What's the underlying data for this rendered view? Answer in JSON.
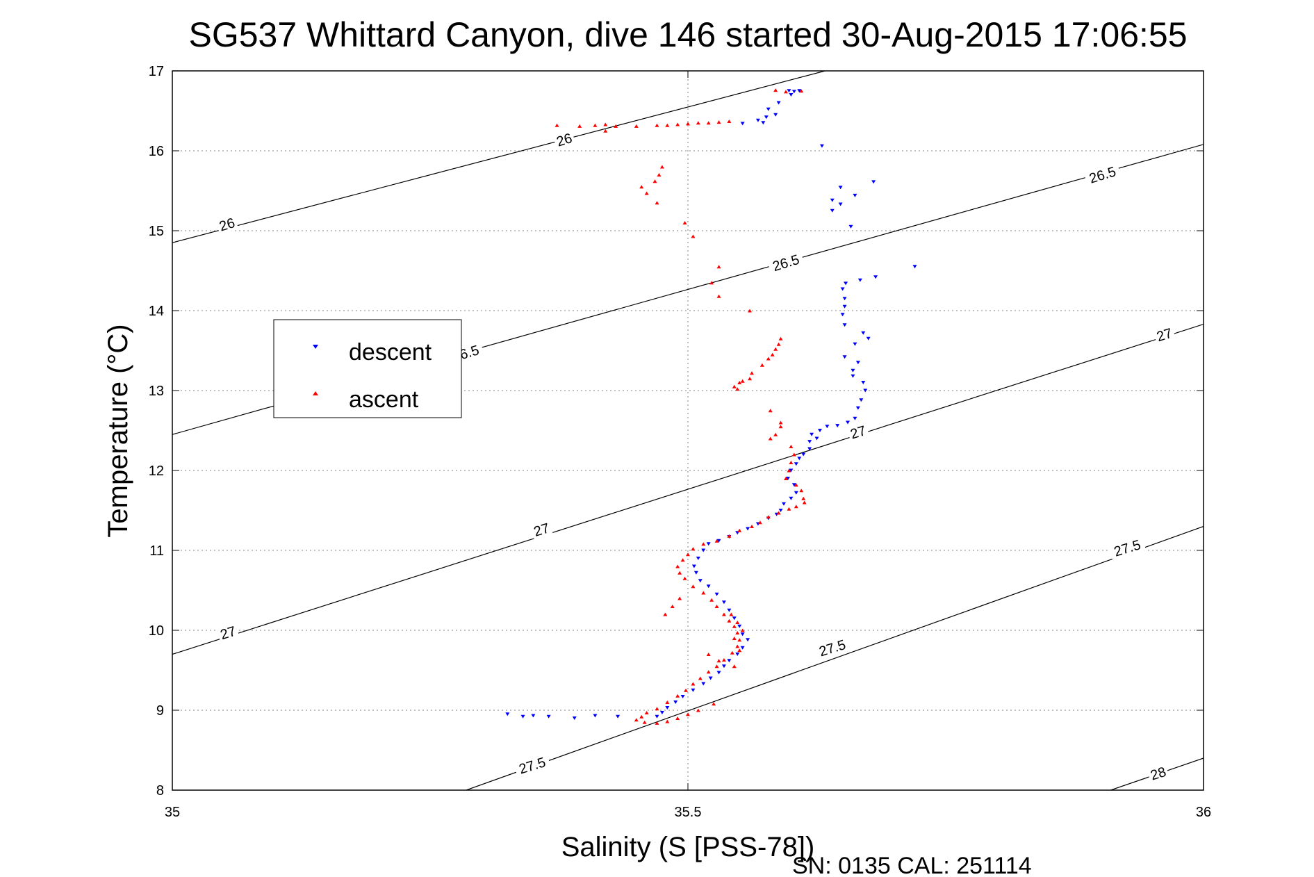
{
  "chart_data": {
    "type": "scatter",
    "title": "SG537 Whittard Canyon, dive 146 started 30-Aug-2015 17:06:55",
    "xlabel": "Salinity (S [PSS-78])",
    "ylabel": "Temperature (°C)",
    "xlim": [
      35,
      36
    ],
    "ylim": [
      8,
      17
    ],
    "xticks": [
      "35",
      "35.5",
      "36"
    ],
    "yticks": [
      "8",
      "9",
      "10",
      "11",
      "12",
      "13",
      "14",
      "15",
      "16",
      "17"
    ],
    "grid": true,
    "legend": {
      "location": "upper-left",
      "entries": [
        "descent",
        "ascent"
      ]
    },
    "footer": "SN: 0135  CAL: 251114",
    "isopycnals": [
      {
        "label": "26",
        "points": [
          [
            35.0,
            14.85
          ],
          [
            35.633,
            17.0
          ]
        ]
      },
      {
        "label": "26.5",
        "points": [
          [
            35.0,
            12.45
          ],
          [
            36.0,
            16.08
          ]
        ]
      },
      {
        "label": "27",
        "points": [
          [
            35.0,
            9.7
          ],
          [
            36.0,
            13.83
          ]
        ]
      },
      {
        "label": "27.5",
        "points": [
          [
            35.285,
            8.0
          ],
          [
            36.0,
            11.3
          ]
        ]
      },
      {
        "label": "28",
        "points": [
          [
            35.91,
            8.0
          ],
          [
            36.0,
            8.4
          ]
        ]
      }
    ],
    "contour_labels": [
      {
        "text": "26",
        "s": 35.053,
        "t": 15.08,
        "angle": -17
      },
      {
        "text": "26",
        "s": 35.38,
        "t": 16.14,
        "angle": -17
      },
      {
        "text": "26.5",
        "s": 35.595,
        "t": 14.6,
        "angle": -17
      },
      {
        "text": "26.5",
        "s": 35.902,
        "t": 15.7,
        "angle": -17
      },
      {
        "text": "6.5",
        "s": 35.288,
        "t": 13.48,
        "angle": -17
      },
      {
        "text": "27",
        "s": 35.054,
        "t": 9.97,
        "angle": -17
      },
      {
        "text": "27",
        "s": 35.358,
        "t": 11.26,
        "angle": -17
      },
      {
        "text": "27",
        "s": 35.665,
        "t": 12.48,
        "angle": -17
      },
      {
        "text": "27",
        "s": 35.962,
        "t": 13.7,
        "angle": -17
      },
      {
        "text": "27.5",
        "s": 35.349,
        "t": 8.31,
        "angle": -17
      },
      {
        "text": "27.5",
        "s": 35.64,
        "t": 9.78,
        "angle": -17
      },
      {
        "text": "27.5",
        "s": 35.926,
        "t": 11.03,
        "angle": -17
      },
      {
        "text": "28",
        "s": 35.956,
        "t": 8.21,
        "angle": -17
      }
    ],
    "series": [
      {
        "name": "descent",
        "color": "#0000ff",
        "marker": "triangle-down",
        "points": [
          [
            35.598,
            16.75
          ],
          [
            35.603,
            16.74
          ],
          [
            35.608,
            16.75
          ],
          [
            35.6,
            16.7
          ],
          [
            35.588,
            16.6
          ],
          [
            35.578,
            16.52
          ],
          [
            35.585,
            16.45
          ],
          [
            35.576,
            16.42
          ],
          [
            35.568,
            16.38
          ],
          [
            35.573,
            16.35
          ],
          [
            35.553,
            16.34
          ],
          [
            35.63,
            16.06
          ],
          [
            35.648,
            15.54
          ],
          [
            35.662,
            15.44
          ],
          [
            35.64,
            15.38
          ],
          [
            35.648,
            15.33
          ],
          [
            35.64,
            15.25
          ],
          [
            35.658,
            15.05
          ],
          [
            35.68,
            15.61
          ],
          [
            35.72,
            14.55
          ],
          [
            35.682,
            14.42
          ],
          [
            35.667,
            14.38
          ],
          [
            35.653,
            14.34
          ],
          [
            35.65,
            14.27
          ],
          [
            35.652,
            14.15
          ],
          [
            35.652,
            14.05
          ],
          [
            35.65,
            13.95
          ],
          [
            35.652,
            13.82
          ],
          [
            35.67,
            13.72
          ],
          [
            35.675,
            13.65
          ],
          [
            35.662,
            13.58
          ],
          [
            35.652,
            13.42
          ],
          [
            35.665,
            13.35
          ],
          [
            35.66,
            13.25
          ],
          [
            35.66,
            13.18
          ],
          [
            35.67,
            13.1
          ],
          [
            35.672,
            13.0
          ],
          [
            35.668,
            12.88
          ],
          [
            35.665,
            12.78
          ],
          [
            35.662,
            12.65
          ],
          [
            35.655,
            12.6
          ],
          [
            35.645,
            12.56
          ],
          [
            35.635,
            12.55
          ],
          [
            35.628,
            12.5
          ],
          [
            35.62,
            12.45
          ],
          [
            35.625,
            12.4
          ],
          [
            35.618,
            12.36
          ],
          [
            35.618,
            12.27
          ],
          [
            35.612,
            12.2
          ],
          [
            35.608,
            12.15
          ],
          [
            35.605,
            12.08
          ],
          [
            35.6,
            12.0
          ],
          [
            35.597,
            11.9
          ],
          [
            35.603,
            11.82
          ],
          [
            35.605,
            11.72
          ],
          [
            35.6,
            11.65
          ],
          [
            35.593,
            11.58
          ],
          [
            35.59,
            11.5
          ],
          [
            35.586,
            11.45
          ],
          [
            35.578,
            11.4
          ],
          [
            35.568,
            11.33
          ],
          [
            35.558,
            11.27
          ],
          [
            35.548,
            11.22
          ],
          [
            35.54,
            11.17
          ],
          [
            35.53,
            11.12
          ],
          [
            35.52,
            11.08
          ],
          [
            35.515,
            11.0
          ],
          [
            35.51,
            10.9
          ],
          [
            35.506,
            10.8
          ],
          [
            35.508,
            10.72
          ],
          [
            35.512,
            10.62
          ],
          [
            35.52,
            10.55
          ],
          [
            35.528,
            10.45
          ],
          [
            35.535,
            10.35
          ],
          [
            35.54,
            10.25
          ],
          [
            35.545,
            10.15
          ],
          [
            35.55,
            10.05
          ],
          [
            35.553,
            9.95
          ],
          [
            35.558,
            9.88
          ],
          [
            35.553,
            9.78
          ],
          [
            35.548,
            9.7
          ],
          [
            35.54,
            9.62
          ],
          [
            35.535,
            9.55
          ],
          [
            35.53,
            9.47
          ],
          [
            35.522,
            9.4
          ],
          [
            35.515,
            9.33
          ],
          [
            35.505,
            9.25
          ],
          [
            35.495,
            9.17
          ],
          [
            35.488,
            9.1
          ],
          [
            35.48,
            9.03
          ],
          [
            35.475,
            8.97
          ],
          [
            35.47,
            8.92
          ],
          [
            35.432,
            8.92
          ],
          [
            35.41,
            8.93
          ],
          [
            35.39,
            8.9
          ],
          [
            35.365,
            8.92
          ],
          [
            35.35,
            8.93
          ],
          [
            35.325,
            8.95
          ],
          [
            35.34,
            8.92
          ]
        ]
      },
      {
        "name": "ascent",
        "color": "#ff0000",
        "marker": "triangle-up",
        "points": [
          [
            35.61,
            16.75
          ],
          [
            35.595,
            16.74
          ],
          [
            35.585,
            16.76
          ],
          [
            35.54,
            16.37
          ],
          [
            35.53,
            16.36
          ],
          [
            35.52,
            16.35
          ],
          [
            35.51,
            16.35
          ],
          [
            35.5,
            16.34
          ],
          [
            35.49,
            16.33
          ],
          [
            35.48,
            16.32
          ],
          [
            35.47,
            16.32
          ],
          [
            35.45,
            16.31
          ],
          [
            35.43,
            16.31
          ],
          [
            35.41,
            16.32
          ],
          [
            35.395,
            16.31
          ],
          [
            35.373,
            16.32
          ],
          [
            35.42,
            16.25
          ],
          [
            35.42,
            16.33
          ],
          [
            35.475,
            15.8
          ],
          [
            35.472,
            15.7
          ],
          [
            35.468,
            15.62
          ],
          [
            35.455,
            15.55
          ],
          [
            35.46,
            15.47
          ],
          [
            35.47,
            15.35
          ],
          [
            35.497,
            15.1
          ],
          [
            35.505,
            14.93
          ],
          [
            35.53,
            14.55
          ],
          [
            35.523,
            14.35
          ],
          [
            35.53,
            14.18
          ],
          [
            35.56,
            14.0
          ],
          [
            35.59,
            13.65
          ],
          [
            35.588,
            13.58
          ],
          [
            35.585,
            13.52
          ],
          [
            35.582,
            13.45
          ],
          [
            35.578,
            13.4
          ],
          [
            35.572,
            13.32
          ],
          [
            35.562,
            13.22
          ],
          [
            35.56,
            13.15
          ],
          [
            35.553,
            13.12
          ],
          [
            35.55,
            13.1
          ],
          [
            35.545,
            13.05
          ],
          [
            35.548,
            13.02
          ],
          [
            35.58,
            12.75
          ],
          [
            35.59,
            12.6
          ],
          [
            35.59,
            12.55
          ],
          [
            35.585,
            12.45
          ],
          [
            35.58,
            12.4
          ],
          [
            35.6,
            12.3
          ],
          [
            35.603,
            12.2
          ],
          [
            35.6,
            12.1
          ],
          [
            35.598,
            12.0
          ],
          [
            35.595,
            11.9
          ],
          [
            35.605,
            11.82
          ],
          [
            35.61,
            11.75
          ],
          [
            35.612,
            11.65
          ],
          [
            35.613,
            11.6
          ],
          [
            35.605,
            11.55
          ],
          [
            35.598,
            11.52
          ],
          [
            35.588,
            11.47
          ],
          [
            35.578,
            11.42
          ],
          [
            35.57,
            11.35
          ],
          [
            35.562,
            11.3
          ],
          [
            35.55,
            11.25
          ],
          [
            35.54,
            11.18
          ],
          [
            35.528,
            11.12
          ],
          [
            35.515,
            11.08
          ],
          [
            35.505,
            11.02
          ],
          [
            35.5,
            10.95
          ],
          [
            35.495,
            10.88
          ],
          [
            35.49,
            10.8
          ],
          [
            35.492,
            10.72
          ],
          [
            35.497,
            10.65
          ],
          [
            35.505,
            10.55
          ],
          [
            35.515,
            10.47
          ],
          [
            35.523,
            10.38
          ],
          [
            35.528,
            10.3
          ],
          [
            35.535,
            10.2
          ],
          [
            35.54,
            10.12
          ],
          [
            35.545,
            10.05
          ],
          [
            35.548,
            9.97
          ],
          [
            35.55,
            9.88
          ],
          [
            35.548,
            9.8
          ],
          [
            35.543,
            9.72
          ],
          [
            35.535,
            9.63
          ],
          [
            35.528,
            9.55
          ],
          [
            35.52,
            9.48
          ],
          [
            35.512,
            9.4
          ],
          [
            35.505,
            9.33
          ],
          [
            35.498,
            9.25
          ],
          [
            35.49,
            9.18
          ],
          [
            35.48,
            9.1
          ],
          [
            35.47,
            9.02
          ],
          [
            35.46,
            8.97
          ],
          [
            35.455,
            8.92
          ],
          [
            35.45,
            8.88
          ],
          [
            35.458,
            8.85
          ],
          [
            35.47,
            8.84
          ],
          [
            35.48,
            8.86
          ],
          [
            35.49,
            8.9
          ],
          [
            35.5,
            8.95
          ],
          [
            35.51,
            9.0
          ],
          [
            35.525,
            9.08
          ],
          [
            35.545,
            9.55
          ],
          [
            35.53,
            9.62
          ],
          [
            35.52,
            9.7
          ],
          [
            35.55,
            9.75
          ],
          [
            35.545,
            9.9
          ],
          [
            35.553,
            10.0
          ],
          [
            35.548,
            10.1
          ],
          [
            35.542,
            10.2
          ],
          [
            35.478,
            10.2
          ],
          [
            35.485,
            10.3
          ],
          [
            35.492,
            10.4
          ]
        ]
      }
    ]
  }
}
